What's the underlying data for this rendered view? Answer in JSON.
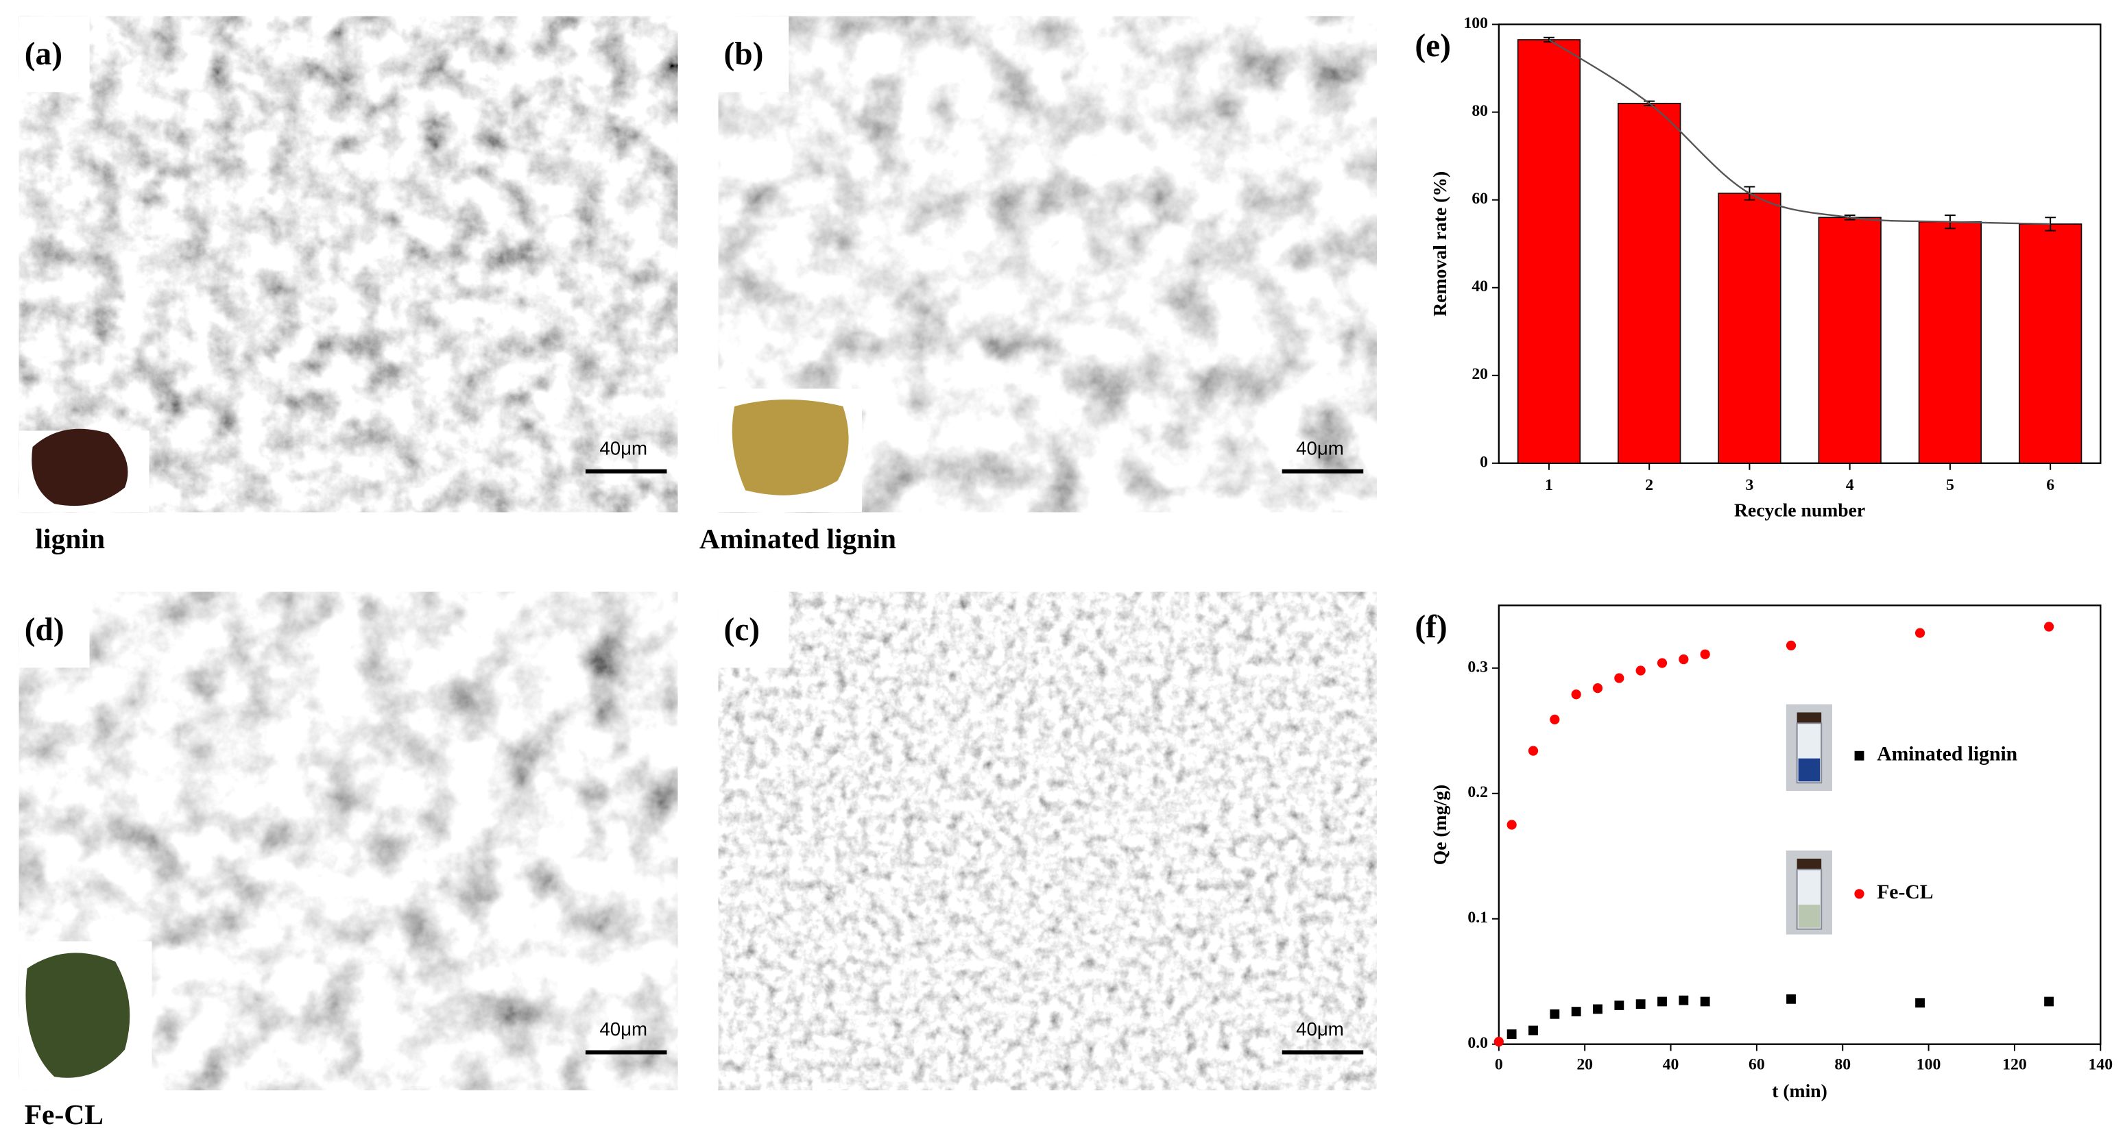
{
  "panels": [
    {
      "label": "(a)",
      "caption": "lignin",
      "scale_bar": "40μm"
    },
    {
      "label": "(b)",
      "caption": "Aminated lignin",
      "scale_bar": "40μm"
    },
    {
      "label": "(d)",
      "caption": "Fe-CL",
      "scale_bar": "40μm"
    },
    {
      "label": "(c)",
      "scale_bar": "40μm"
    }
  ],
  "chart_data": [
    {
      "type": "bar",
      "label": "(e)",
      "categories": [
        "1",
        "2",
        "3",
        "4",
        "5",
        "6"
      ],
      "values": [
        96.5,
        82,
        61.5,
        56,
        55,
        54.5
      ],
      "errors": [
        0.5,
        0.5,
        1.5,
        0.5,
        1.5,
        1.5
      ],
      "color": "#ff0000",
      "fit_line": true,
      "ylim": [
        0,
        100
      ],
      "yticks": [
        0,
        20,
        40,
        60,
        80,
        100
      ],
      "xlabel": "Recycle number",
      "ylabel": "Removal rate (%)"
    },
    {
      "type": "scatter",
      "label": "(f)",
      "xlim": [
        0,
        140
      ],
      "xticks": [
        0,
        20,
        40,
        60,
        80,
        100,
        120,
        140
      ],
      "ylim": [
        0,
        0.35
      ],
      "yticks": [
        {
          "value": 0,
          "label": "0.0"
        },
        0.1,
        0.2,
        0.3
      ],
      "xlabel": "t (min)",
      "ylabel": "Qe (mg/g)",
      "series": [
        {
          "name": "Aminated lignin",
          "color": "#000000",
          "marker": "square",
          "x": [
            3,
            8,
            13,
            18,
            23,
            28,
            33,
            38,
            43,
            48,
            68,
            98,
            128
          ],
          "values": [
            0.008,
            0.011,
            0.024,
            0.026,
            0.028,
            0.031,
            0.032,
            0.034,
            0.035,
            0.034,
            0.036,
            0.033,
            0.034
          ]
        },
        {
          "name": "Fe-CL",
          "color": "#ff0000",
          "marker": "circle",
          "x": [
            0,
            3,
            8,
            13,
            18,
            23,
            28,
            33,
            38,
            43,
            48,
            68,
            98,
            128
          ],
          "values": [
            0.002,
            0.175,
            0.234,
            0.259,
            0.279,
            0.284,
            0.292,
            0.298,
            0.304,
            0.307,
            0.311,
            0.318,
            0.328,
            0.333
          ]
        }
      ]
    }
  ]
}
